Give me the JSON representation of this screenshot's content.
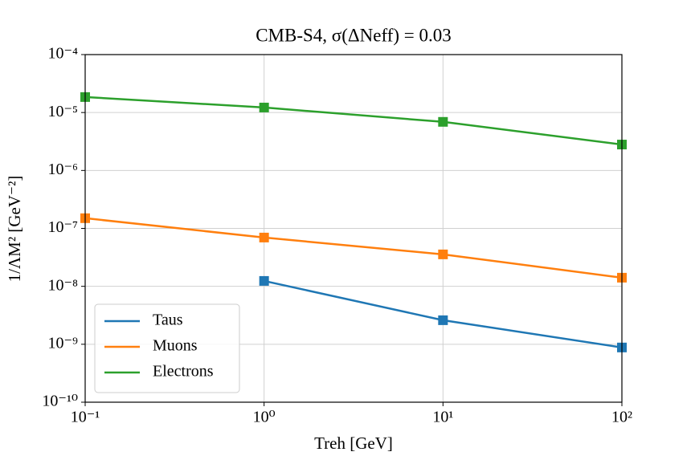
{
  "chart_data": {
    "type": "line",
    "title": "CMB-S4, σ(ΔNeff) = 0.03",
    "xlabel": "Treh [GeV]",
    "ylabel": "1/ΛM² [GeV⁻²]",
    "x": [
      0.1,
      1,
      10,
      100
    ],
    "series": [
      {
        "name": "Taus",
        "color": "#1f77b4",
        "values": [
          null,
          1.24e-08,
          2.6e-09,
          8.8e-10
        ]
      },
      {
        "name": "Muons",
        "color": "#ff7f0e",
        "values": [
          1.5e-07,
          6.95e-08,
          3.56e-08,
          1.41e-08
        ]
      },
      {
        "name": "Electrons",
        "color": "#2ca02c",
        "values": [
          1.85e-05,
          1.22e-05,
          6.9e-06,
          2.8e-06
        ]
      }
    ],
    "xscale": "log",
    "yscale": "log",
    "xlim": [
      0.1,
      100
    ],
    "ylim": [
      1e-10,
      0.0001
    ],
    "xticks": [
      {
        "value": 0.1,
        "label": "10⁻¹"
      },
      {
        "value": 1,
        "label": "10⁰"
      },
      {
        "value": 10,
        "label": "10¹"
      },
      {
        "value": 100,
        "label": "10²"
      }
    ],
    "yticks": [
      {
        "value": 1e-10,
        "label": "10⁻¹⁰"
      },
      {
        "value": 1e-09,
        "label": "10⁻⁹"
      },
      {
        "value": 1e-08,
        "label": "10⁻⁸"
      },
      {
        "value": 1e-07,
        "label": "10⁻⁷"
      },
      {
        "value": 1e-06,
        "label": "10⁻⁶"
      },
      {
        "value": 1e-05,
        "label": "10⁻⁵"
      },
      {
        "value": 0.0001,
        "label": "10⁻⁴"
      }
    ],
    "grid": true,
    "legend": "lower left",
    "marker": "square"
  }
}
